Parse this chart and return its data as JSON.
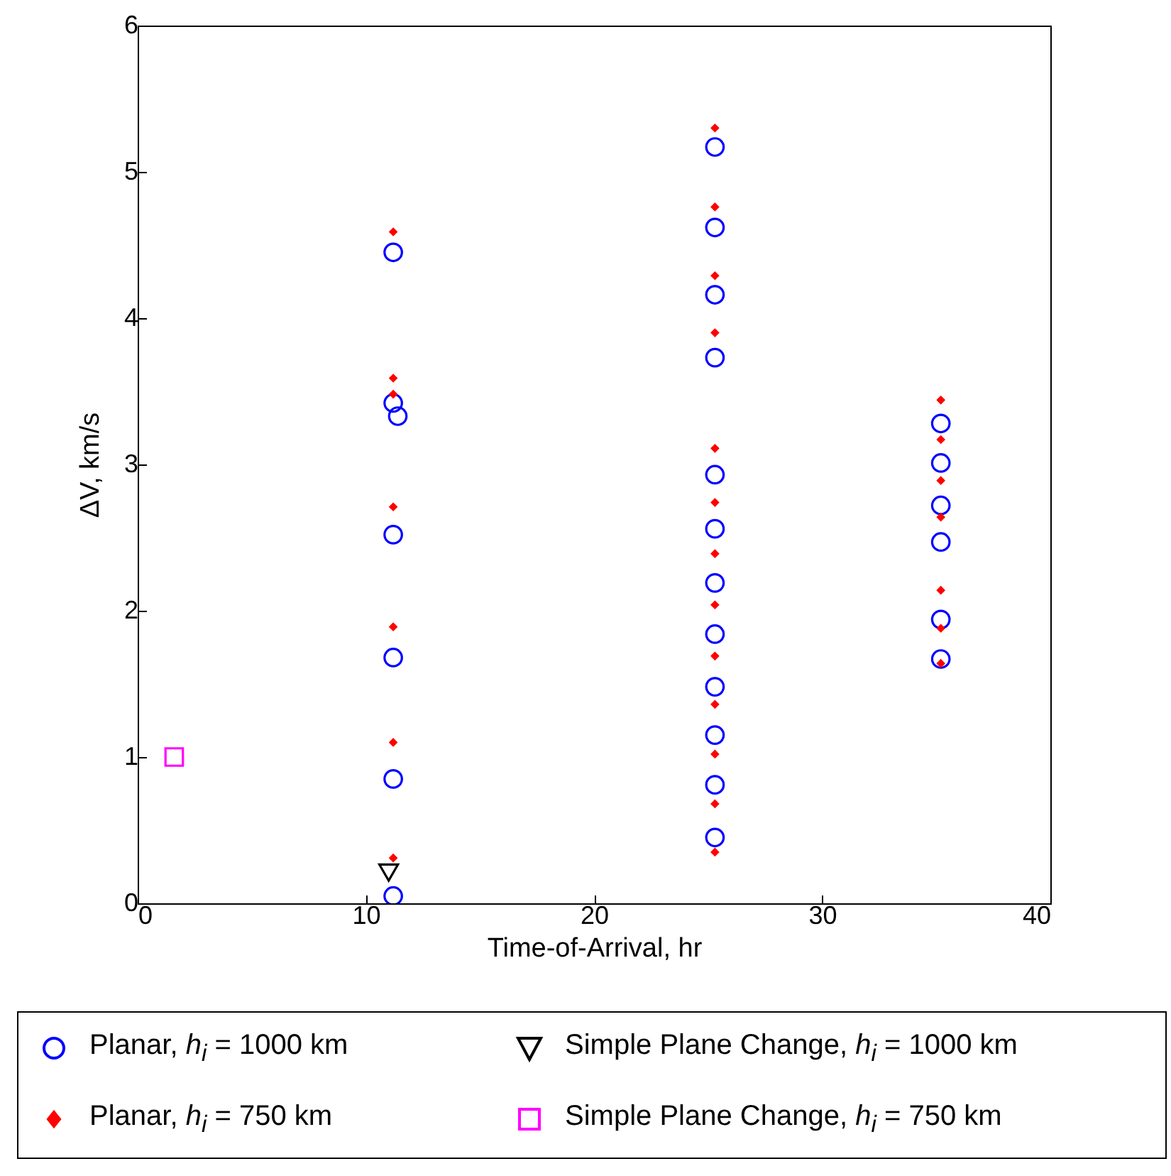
{
  "chart_data": {
    "type": "scatter",
    "xlabel": "Time-of-Arrival, hr",
    "ylabel": "ΔV, km/s",
    "xlim": [
      0,
      40
    ],
    "xticks": [
      0,
      10,
      20,
      30,
      40
    ],
    "ylim": [
      0,
      6
    ],
    "yticks": [
      0,
      1,
      2,
      3,
      4,
      5,
      6
    ],
    "grid": false,
    "legend": "bottom",
    "series": [
      {
        "name": "Planar, h$_{i}$ = 1000 km",
        "color": "#0000ff",
        "marker": "circle",
        "x": [
          11.2,
          11.2,
          11.4,
          11.2,
          11.2,
          11.2,
          11.2,
          25.3,
          25.3,
          25.3,
          25.3,
          25.3,
          25.3,
          25.3,
          25.3,
          25.3,
          25.3,
          25.3,
          25.3,
          35.2,
          35.2,
          35.2,
          35.2,
          35.2,
          35.2
        ],
        "values": [
          4.45,
          3.42,
          3.33,
          2.52,
          1.68,
          0.85,
          0.05,
          5.17,
          4.62,
          4.16,
          3.73,
          2.93,
          2.56,
          2.19,
          1.84,
          1.48,
          1.15,
          0.81,
          0.45,
          3.28,
          3.01,
          2.72,
          2.47,
          1.94,
          1.67
        ]
      },
      {
        "name": "Planar, h$_{i}$ = 750 km",
        "color": "#ff0000",
        "marker": "diamond",
        "x": [
          11.2,
          11.2,
          11.2,
          11.2,
          11.2,
          11.2,
          11.2,
          25.3,
          25.3,
          25.3,
          25.3,
          25.3,
          25.3,
          25.3,
          25.3,
          25.3,
          25.3,
          25.3,
          25.3,
          25.3,
          35.2,
          35.2,
          35.2,
          35.2,
          35.2,
          35.2,
          35.2
        ],
        "values": [
          4.59,
          3.59,
          3.48,
          2.71,
          1.89,
          1.1,
          0.31,
          5.3,
          4.76,
          4.29,
          3.9,
          3.11,
          2.74,
          2.39,
          2.04,
          1.69,
          1.36,
          1.02,
          0.68,
          0.35,
          3.44,
          3.17,
          2.89,
          2.64,
          2.14,
          1.88,
          1.64
        ]
      },
      {
        "name": "Simple Plane Change, h$_{i}$ = 1000 km",
        "color": "#000000",
        "marker": "triangle",
        "x": [
          11.0
        ],
        "values": [
          0.21
        ]
      },
      {
        "name": "Simple Plane Change, h$_{i}$ = 750 km",
        "color": "#ff00ff",
        "marker": "square",
        "x": [
          1.6
        ],
        "values": [
          1.0
        ]
      }
    ]
  }
}
